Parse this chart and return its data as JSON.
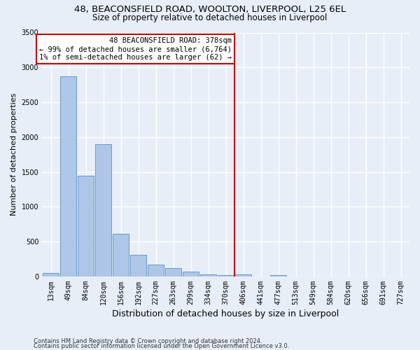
{
  "title_line1": "48, BEACONSFIELD ROAD, WOOLTON, LIVERPOOL, L25 6EL",
  "title_line2": "Size of property relative to detached houses in Liverpool",
  "xlabel": "Distribution of detached houses by size in Liverpool",
  "ylabel": "Number of detached properties",
  "footnote1": "Contains HM Land Registry data © Crown copyright and database right 2024.",
  "footnote2": "Contains public sector information licensed under the Open Government Licence v3.0.",
  "bar_labels": [
    "13sqm",
    "49sqm",
    "84sqm",
    "120sqm",
    "156sqm",
    "192sqm",
    "227sqm",
    "263sqm",
    "299sqm",
    "334sqm",
    "370sqm",
    "406sqm",
    "441sqm",
    "477sqm",
    "513sqm",
    "549sqm",
    "584sqm",
    "620sqm",
    "656sqm",
    "691sqm",
    "727sqm"
  ],
  "bar_values": [
    50,
    2870,
    1450,
    1900,
    610,
    310,
    175,
    115,
    65,
    30,
    20,
    25,
    0,
    20,
    0,
    0,
    0,
    0,
    0,
    0,
    0
  ],
  "bar_color": "#aec6e8",
  "bar_edge_color": "#5a8fc0",
  "vline_index": 10,
  "annotation_line1": "48 BEACONSFIELD ROAD: 378sqm",
  "annotation_line2": "← 99% of detached houses are smaller (6,764)",
  "annotation_line3": "1% of semi-detached houses are larger (62) →",
  "vline_color": "#cc0000",
  "annotation_box_edge": "#cc0000",
  "ylim": [
    0,
    3500
  ],
  "yticks": [
    0,
    500,
    1000,
    1500,
    2000,
    2500,
    3000,
    3500
  ],
  "background_color": "#e8eef8",
  "grid_color": "#ffffff",
  "title_fontsize": 9.5,
  "subtitle_fontsize": 8.5,
  "ylabel_fontsize": 8,
  "xlabel_fontsize": 9,
  "tick_fontsize": 7,
  "annotation_fontsize": 7.5,
  "footnote_fontsize": 6
}
